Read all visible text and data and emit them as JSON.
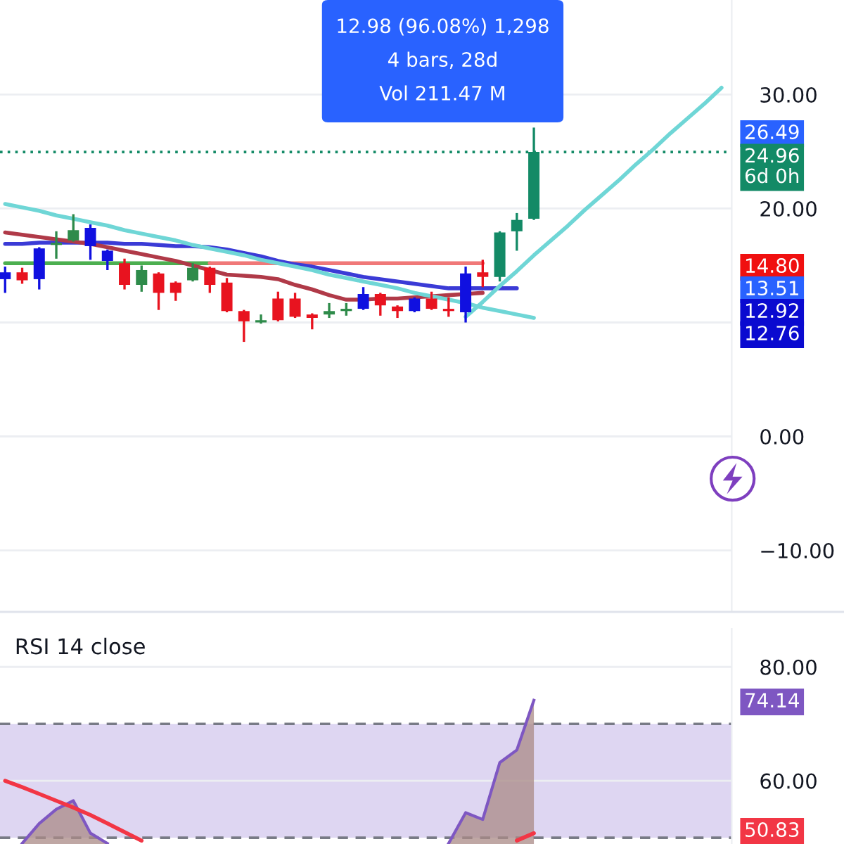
{
  "chart_data": [
    {
      "type": "candlestick",
      "categories": [
        null,
        null,
        null,
        null,
        null,
        null,
        null,
        null,
        null,
        null,
        null,
        null,
        null,
        null,
        null,
        null,
        null,
        null,
        null,
        null,
        null,
        null,
        null,
        null,
        null,
        null,
        null,
        null,
        null,
        null,
        null,
        null,
        null,
        null,
        null,
        null,
        null,
        null,
        null,
        null,
        null,
        null,
        null
      ],
      "ohlc": [
        [
          13.8,
          14.8,
          12.7,
          14.4
        ],
        [
          14.4,
          14.7,
          13.5,
          13.7
        ],
        [
          13.8,
          16.5,
          13.0,
          16.5
        ],
        [
          16.8,
          17.9,
          15.7,
          17.0
        ],
        [
          17.2,
          19.4,
          17.2,
          18.1
        ],
        [
          16.7,
          18.5,
          15.6,
          18.3
        ],
        [
          15.4,
          16.3,
          14.7,
          16.3
        ],
        [
          15.2,
          15.5,
          13.0,
          13.3
        ],
        [
          13.3,
          14.9,
          12.8,
          14.6
        ],
        [
          14.3,
          14.3,
          11.2,
          12.6
        ],
        [
          13.5,
          13.5,
          12.0,
          12.6
        ],
        [
          13.7,
          15.1,
          13.7,
          14.8
        ],
        [
          14.8,
          14.8,
          12.7,
          13.3
        ],
        [
          13.5,
          13.8,
          11.0,
          11.0
        ],
        [
          11.0,
          11.0,
          8.4,
          10.1
        ],
        [
          10.0,
          10.6,
          10.0,
          10.2
        ],
        [
          12.1,
          12.6,
          10.2,
          10.2
        ],
        [
          12.1,
          12.5,
          10.5,
          10.5
        ],
        [
          10.7,
          10.7,
          9.5,
          10.4
        ],
        [
          10.7,
          11.6,
          10.5,
          11.0
        ],
        [
          11.0,
          11.6,
          10.7,
          11.2
        ],
        [
          11.2,
          13.0,
          11.2,
          12.5
        ],
        [
          12.5,
          12.5,
          10.7,
          11.5
        ],
        [
          11.4,
          11.4,
          10.5,
          11.0
        ],
        [
          11.0,
          12.1,
          11.0,
          12.1
        ],
        [
          12.1,
          12.6,
          11.2,
          11.2
        ],
        [
          11.2,
          12.1,
          10.6,
          11.0
        ],
        [
          10.9,
          14.8,
          10.1,
          14.3
        ],
        [
          14.4,
          15.4,
          13.2,
          14.0
        ],
        [
          14.0,
          17.9,
          13.7,
          17.9
        ],
        [
          18.0,
          19.5,
          16.4,
          19.0
        ],
        [
          19.1,
          27.0,
          19.1,
          24.96
        ],
        null,
        null,
        null,
        null,
        null,
        null,
        null,
        null,
        null,
        null,
        null
      ],
      "colors": [
        "#1010e0",
        "#e8131f",
        "#1010e0",
        "#2e8b4a",
        "#2e8b4a",
        "#1010e0",
        "#1010e0",
        "#e8131f",
        "#2e8b4a",
        "#e8131f",
        "#e8131f",
        "#2e8b4a",
        "#e8131f",
        "#e8131f",
        "#e8131f",
        "#2e8b4a",
        "#e8131f",
        "#e8131f",
        "#e8131f",
        "#2e8b4a",
        "#2e8b4a",
        "#1010e0",
        "#e8131f",
        "#e8131f",
        "#1010e0",
        "#e8131f",
        "#e8131f",
        "#1010e0",
        "#e8131f",
        "#138a66",
        "#138a66",
        "#138a66",
        null,
        null,
        null,
        null,
        null,
        null,
        null,
        null,
        null,
        null,
        null
      ],
      "series": [
        {
          "type": "line",
          "color": "#4caf50",
          "values": [
            15.2,
            15.2,
            15.2,
            15.2,
            15.2,
            15.2,
            15.2,
            15.2,
            15.2,
            15.2,
            15.2,
            15.2,
            15.2,
            null,
            null,
            null,
            null,
            null,
            null,
            null,
            null,
            null,
            null,
            null,
            null,
            null,
            null,
            null,
            null,
            null,
            null,
            null,
            null,
            null,
            null,
            null,
            null,
            null,
            null,
            null,
            null,
            null,
            null
          ]
        },
        {
          "type": "line",
          "color": "#f07878",
          "values": [
            null,
            null,
            null,
            null,
            null,
            null,
            null,
            null,
            null,
            null,
            null,
            null,
            15.2,
            15.2,
            15.2,
            15.2,
            15.2,
            15.2,
            15.2,
            15.2,
            15.2,
            15.2,
            15.2,
            15.2,
            15.2,
            15.2,
            15.2,
            15.2,
            15.2,
            null,
            null,
            null,
            null,
            null,
            null,
            null,
            null,
            null,
            null,
            null,
            null,
            null,
            null
          ]
        },
        {
          "type": "line",
          "color": "#3b3bd6",
          "values": [
            16.9,
            16.9,
            17.0,
            17.0,
            17.0,
            17.0,
            17.0,
            16.9,
            16.9,
            16.8,
            16.7,
            16.7,
            16.6,
            16.4,
            16.1,
            15.8,
            15.4,
            15.1,
            14.9,
            14.6,
            14.3,
            14.0,
            13.8,
            13.6,
            13.4,
            13.2,
            13.0,
            13.0,
            13.0,
            13.0,
            13.0,
            null,
            null,
            null,
            null,
            null,
            null,
            null,
            null,
            null,
            null,
            null,
            null
          ]
        },
        {
          "type": "line",
          "color": "#b03a48",
          "values": [
            17.9,
            17.7,
            17.5,
            17.3,
            17.1,
            16.9,
            16.6,
            16.3,
            16.0,
            15.7,
            15.4,
            15.0,
            14.6,
            14.2,
            14.1,
            14.0,
            13.8,
            13.3,
            12.9,
            12.4,
            12.0,
            12.0,
            12.1,
            12.1,
            12.2,
            12.3,
            12.4,
            12.5,
            12.6,
            null,
            null,
            null,
            null,
            null,
            null,
            null,
            null,
            null,
            null,
            null,
            null,
            null,
            null
          ]
        },
        {
          "type": "line",
          "color": "#6fd6d6",
          "values": [
            20.4,
            20.1,
            19.8,
            19.4,
            19.1,
            18.8,
            18.5,
            18.1,
            17.8,
            17.5,
            17.2,
            16.8,
            16.5,
            16.2,
            15.9,
            15.5,
            15.2,
            14.9,
            14.6,
            14.2,
            13.9,
            13.6,
            13.3,
            13.0,
            12.6,
            12.3,
            12.0,
            11.7,
            11.3,
            11.0,
            10.7,
            10.4,
            null,
            null,
            null,
            null,
            null,
            null,
            null,
            null,
            null,
            null,
            null
          ]
        },
        {
          "type": "line",
          "color": "#6fd6d6",
          "values": [
            null,
            null,
            null,
            null,
            null,
            null,
            null,
            null,
            null,
            null,
            null,
            null,
            null,
            null,
            null,
            null,
            null,
            null,
            null,
            null,
            null,
            null,
            null,
            null,
            null,
            null,
            null,
            10.5,
            11.8,
            13.2,
            14.5,
            15.9,
            17.2,
            18.5,
            19.9,
            21.2,
            22.5,
            23.9,
            25.2,
            26.6,
            27.9,
            29.2,
            30.6
          ]
        }
      ],
      "annotations": [
        "12.98 (96.08%) 1,298",
        "4 bars, 28d",
        "Vol 211.47 M",
        "26.49",
        "24.96\n6d 0h",
        "14.80",
        "13.51",
        "12.92",
        "12.76"
      ],
      "ref_lines": [
        {
          "axis": "y",
          "value": 24.96,
          "color": "#138a66",
          "line_style": "dotted"
        }
      ],
      "ylim": [
        -15.4,
        38.3
      ],
      "yticks": [
        {
          "value": 30,
          "label": "30.00"
        },
        {
          "value": 20,
          "label": "20.00"
        },
        {
          "value": 10,
          "label": null
        },
        {
          "value": 0,
          "label": "0.00"
        },
        {
          "value": -10,
          "label": "−10.00"
        }
      ],
      "tick_labels": "y",
      "grid": true
    },
    {
      "type": "line",
      "title": "RSI 14 close",
      "categories": [
        null,
        null,
        null,
        null,
        null,
        null,
        null,
        null,
        null,
        null,
        null,
        null,
        null,
        null,
        null,
        null,
        null,
        null,
        null,
        null,
        null,
        null,
        null,
        null,
        null,
        null,
        null,
        null,
        null,
        null,
        null,
        null,
        null,
        null,
        null,
        null,
        null,
        null,
        null,
        null,
        null,
        null,
        null
      ],
      "series": [
        {
          "type": "area",
          "color": "#7e57c2",
          "values": [
            null,
            49.0,
            52.5,
            55.0,
            56.5,
            50.8,
            49.0,
            null,
            null,
            null,
            null,
            null,
            null,
            null,
            null,
            null,
            null,
            null,
            null,
            null,
            null,
            null,
            null,
            null,
            null,
            null,
            49.0,
            54.4,
            53.2,
            63.2,
            65.4,
            74.14,
            null,
            null,
            null,
            null,
            null,
            null,
            null,
            null,
            null,
            null,
            null
          ]
        },
        {
          "type": "line",
          "color": "#f23645",
          "values": [
            60.0,
            58.9,
            57.7,
            56.5,
            55.3,
            54.0,
            52.5,
            51.0,
            49.5,
            null,
            null,
            null,
            null,
            null,
            null,
            null,
            null,
            null,
            null,
            null,
            null,
            null,
            null,
            null,
            null,
            null,
            null,
            null,
            null,
            null,
            49.5,
            50.8,
            null,
            null,
            null,
            null,
            null,
            null,
            null,
            null,
            null,
            null,
            null
          ]
        }
      ],
      "bands": [
        {
          "axis": "y",
          "from": 50,
          "to": 70,
          "color": "#d6ccef"
        }
      ],
      "annotations": [
        "74.14",
        "50.83"
      ],
      "ref_lines": [
        {
          "axis": "y",
          "value": 70,
          "color": "#787b86",
          "line_style": "dashed"
        },
        {
          "axis": "y",
          "value": 50,
          "color": "#787b86",
          "line_style": "dashed"
        }
      ],
      "ylim": [
        48.9,
        86.7
      ],
      "yticks": [
        {
          "value": 80,
          "label": "80.00"
        },
        {
          "value": 60,
          "label": "60.00"
        }
      ],
      "tick_labels": "y",
      "grid": true
    }
  ]
}
